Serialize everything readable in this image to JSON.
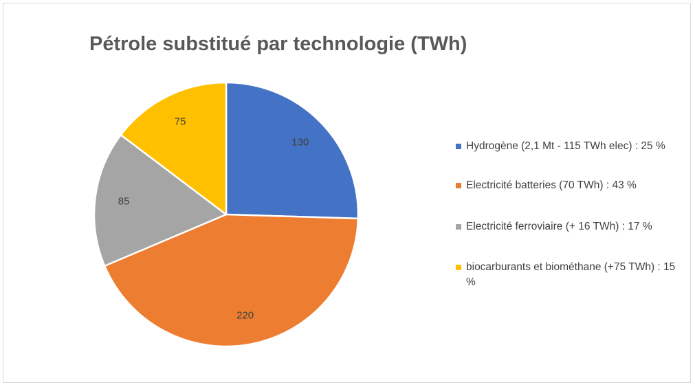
{
  "chart_data": {
    "type": "pie",
    "title": "Pétrole substitué par technologie (TWh)",
    "categories": [
      "Hydrogène (2,1 Mt - 115 TWh elec) : 25 %",
      "Electricité batteries (70 TWh) : 43 %",
      "Electricité ferroviaire (+ 16 TWh) : 17 %",
      "biocarburants et biométhane (+75 TWh) : 15 %"
    ],
    "values": [
      130,
      220,
      85,
      75
    ],
    "data_labels": [
      "130",
      "220",
      "85",
      "75"
    ],
    "colors": [
      "#4472C4",
      "#ED7D31",
      "#A5A5A5",
      "#FFC000"
    ],
    "legend_position": "right",
    "start_angle": "12 o'clock",
    "direction": "clockwise"
  }
}
